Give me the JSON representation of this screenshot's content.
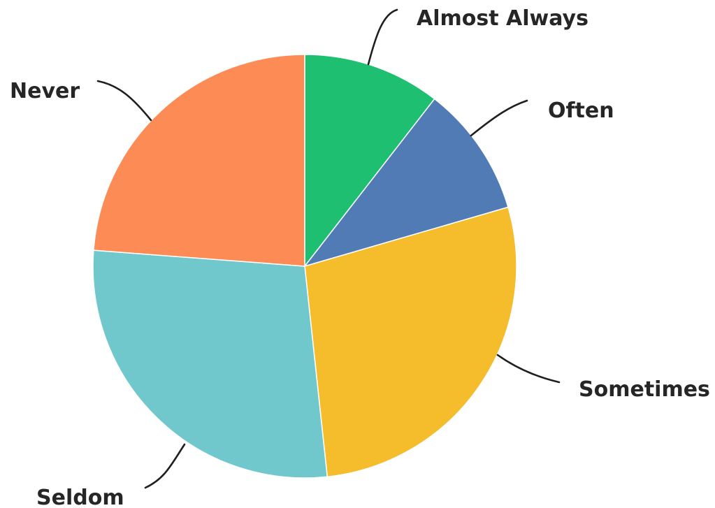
{
  "chart_data": {
    "type": "pie",
    "title": "",
    "slices": [
      {
        "label": "Almost Always",
        "value": 10.5,
        "color": "#1FBF72"
      },
      {
        "label": "Often",
        "value": 10.0,
        "color": "#507BB5"
      },
      {
        "label": "Sometimes",
        "value": 27.8,
        "color": "#F5BC2B"
      },
      {
        "label": "Seldom",
        "value": 27.9,
        "color": "#71C8CC"
      },
      {
        "label": "Never",
        "value": 23.8,
        "color": "#FD8B55"
      }
    ],
    "legend": "none",
    "labels": "outside with leader lines"
  }
}
